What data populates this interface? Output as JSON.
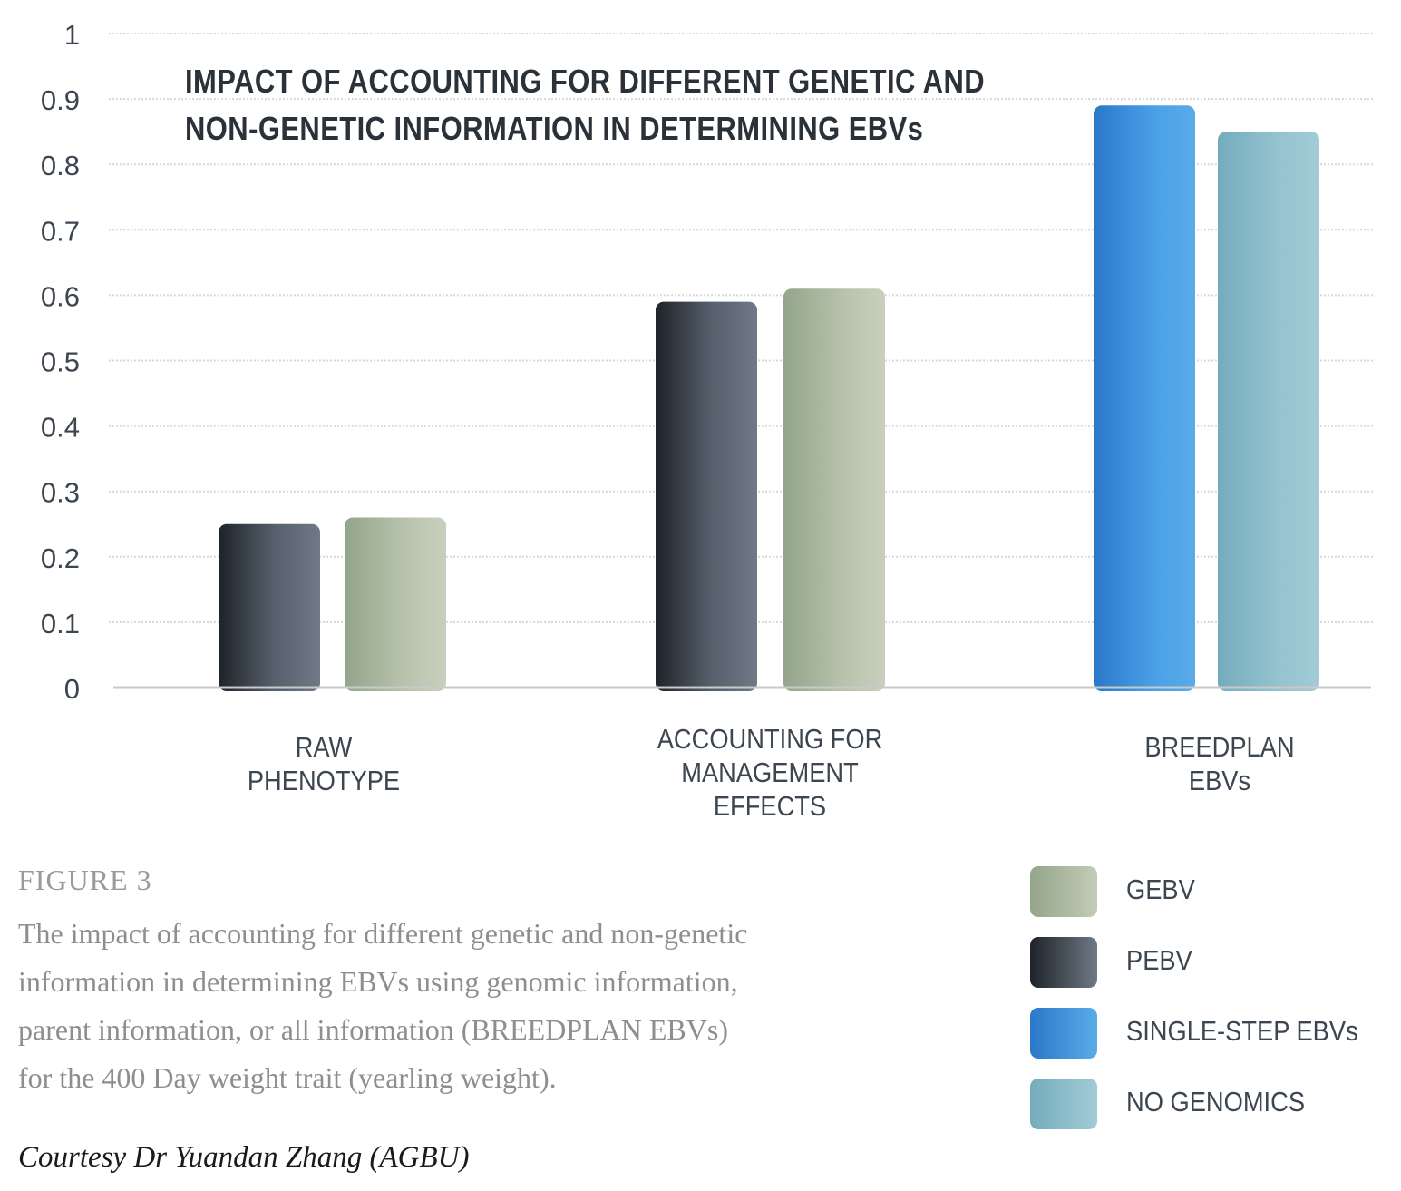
{
  "chart_data": {
    "type": "bar",
    "title_lines": [
      "IMPACT OF ACCOUNTING FOR DIFFERENT GENETIC AND",
      "NON-GENETIC INFORMATION IN DETERMINING EBVs"
    ],
    "categories": [
      {
        "lines": [
          "RAW",
          "PHENOTYPE"
        ]
      },
      {
        "lines": [
          "ACCOUNTING FOR",
          "MANAGEMENT",
          "EFFECTS"
        ]
      },
      {
        "lines": [
          "BREEDPLAN",
          "EBVs"
        ]
      }
    ],
    "bars": [
      {
        "category": 0,
        "series": "PEBV",
        "value": 0.25
      },
      {
        "category": 0,
        "series": "GEBV",
        "value": 0.26
      },
      {
        "category": 1,
        "series": "PEBV",
        "value": 0.59
      },
      {
        "category": 1,
        "series": "GEBV",
        "value": 0.61
      },
      {
        "category": 2,
        "series": "SINGLE-STEP EBVs",
        "value": 0.89
      },
      {
        "category": 2,
        "series": "NO GENOMICS",
        "value": 0.85
      }
    ],
    "y_ticks": [
      "0",
      "0.1",
      "0.2",
      "0.3",
      "0.4",
      "0.5",
      "0.6",
      "0.7",
      "0.8",
      "0.9",
      "1"
    ],
    "ylim": [
      0,
      1
    ],
    "grid": true,
    "legend": {
      "placement": "bottom-right",
      "items": [
        {
          "name": "GEBV",
          "color": "#a9b89e"
        },
        {
          "name": "PEBV",
          "color": "#3f4650"
        },
        {
          "name": "SINGLE-STEP EBVs",
          "color": "#3d8fdc"
        },
        {
          "name": "NO GENOMICS",
          "color": "#86b9c7"
        }
      ]
    }
  },
  "figure": {
    "label": "FIGURE 3",
    "caption_lines": [
      "The impact of accounting for different genetic and non-genetic",
      "information in determining EBVs using genomic information,",
      "parent information, or all information (BREEDPLAN EBVs)",
      "for the 400 Day weight trait (yearling weight)."
    ],
    "credit": "Courtesy Dr Yuandan Zhang (AGBU)"
  }
}
